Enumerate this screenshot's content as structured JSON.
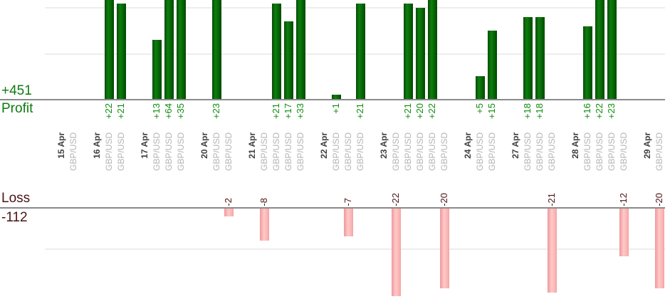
{
  "chart_data": {
    "type": "bar",
    "instrument": "GBP/USD",
    "profit_section": {
      "label": "Profit",
      "total_label": "+451",
      "bar_color": "#0d7e0d",
      "text_color": "#0f8b0f",
      "gridline_values": [
        10,
        20
      ],
      "ylim_visible": [
        0,
        22
      ],
      "note_grid": "grid on, baseline axis, tall bars cropped at top edge"
    },
    "loss_section": {
      "label": "Loss",
      "total_label": "-112",
      "bar_color": "#ffc9c9",
      "text_color": "#4a1212",
      "gridline_values": [
        -10
      ],
      "ylim_visible": [
        -23,
        0
      ]
    },
    "groups": [
      {
        "date": "15 Apr",
        "trades": [
          {
            "symbol": "GBP/USD",
            "value": 0,
            "label": ""
          }
        ]
      },
      {
        "date": "16 Apr",
        "trades": [
          {
            "symbol": "GBP/USD",
            "value": 22,
            "label": "+22"
          },
          {
            "symbol": "GBP/USD",
            "value": 21,
            "label": "+21"
          }
        ]
      },
      {
        "date": "17 Apr",
        "trades": [
          {
            "symbol": "GBP/USD",
            "value": 13,
            "label": "+13"
          },
          {
            "symbol": "GBP/USD",
            "value": 64,
            "label": "+64"
          },
          {
            "symbol": "GBP/USD",
            "value": 35,
            "label": "+35"
          }
        ]
      },
      {
        "date": "20 Apr",
        "trades": [
          {
            "symbol": "GBP/USD",
            "value": 23,
            "label": "+23"
          },
          {
            "symbol": "GBP/USD",
            "value": -2,
            "label": "-2"
          }
        ]
      },
      {
        "date": "21 Apr",
        "trades": [
          {
            "symbol": "GBP/USD",
            "value": -8,
            "label": "-8"
          },
          {
            "symbol": "GBP/USD",
            "value": 21,
            "label": "+21"
          },
          {
            "symbol": "GBP/USD",
            "value": 17,
            "label": "+17"
          },
          {
            "symbol": "GBP/USD",
            "value": 33,
            "label": "+33"
          }
        ]
      },
      {
        "date": "22 Apr",
        "trades": [
          {
            "symbol": "GBP/USD",
            "value": 1,
            "label": "+1"
          },
          {
            "symbol": "GBP/USD",
            "value": -7,
            "label": "-7"
          },
          {
            "symbol": "GBP/USD",
            "value": 21,
            "label": "+21"
          }
        ]
      },
      {
        "date": "23 Apr",
        "trades": [
          {
            "symbol": "GBP/USD",
            "value": -22,
            "label": "-22"
          },
          {
            "symbol": "GBP/USD",
            "value": 21,
            "label": "+21"
          },
          {
            "symbol": "GBP/USD",
            "value": 20,
            "label": "+20"
          },
          {
            "symbol": "GBP/USD",
            "value": 22,
            "label": "+22"
          },
          {
            "symbol": "GBP/USD",
            "value": -20,
            "label": "-20"
          }
        ]
      },
      {
        "date": "24 Apr",
        "trades": [
          {
            "symbol": "GBP/USD",
            "value": 5,
            "label": "+5"
          },
          {
            "symbol": "GBP/USD",
            "value": 15,
            "label": "+15"
          }
        ]
      },
      {
        "date": "27 Apr",
        "trades": [
          {
            "symbol": "GBP/USD",
            "value": 18,
            "label": "+18"
          },
          {
            "symbol": "GBP/USD",
            "value": 18,
            "label": "+18"
          },
          {
            "symbol": "GBP/USD",
            "value": -21,
            "label": "-21"
          }
        ]
      },
      {
        "date": "28 Apr",
        "trades": [
          {
            "symbol": "GBP/USD",
            "value": 16,
            "label": "+16"
          },
          {
            "symbol": "GBP/USD",
            "value": 22,
            "label": "+22"
          },
          {
            "symbol": "GBP/USD",
            "value": 23,
            "label": "+23"
          },
          {
            "symbol": "GBP/USD",
            "value": -12,
            "label": "-12"
          }
        ]
      },
      {
        "date": "29 Apr",
        "trades": [
          {
            "symbol": "GBP/USD",
            "value": -20,
            "label": "-20"
          }
        ]
      }
    ]
  }
}
